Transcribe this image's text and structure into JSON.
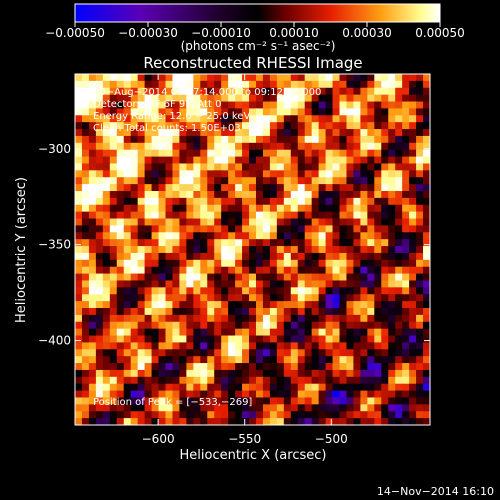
{
  "chart_data": {
    "type": "heatmap",
    "title": "Reconstructed RHESSI Image",
    "xlabel": "Heliocentric X (arcsec)",
    "ylabel": "Heliocentric Y (arcsec)",
    "xlim": [
      -648,
      -443
    ],
    "ylim": [
      -444,
      -261
    ],
    "x_ticks": [
      -600,
      -550,
      -500
    ],
    "x_tick_labels": [
      "−600",
      "−550",
      "−500"
    ],
    "y_ticks": [
      -300,
      -350,
      -400
    ],
    "y_tick_labels": [
      "−300",
      "−350",
      "−400"
    ],
    "colorbar": {
      "range": [
        -0.0005,
        0.0005
      ],
      "ticks": [
        -0.0005,
        -0.0003,
        -0.0001,
        0.0001,
        0.0003,
        0.0005
      ],
      "tick_labels": [
        "−0.00050",
        "−0.00030",
        "−0.00010",
        "0.00010",
        "0.00030",
        "0.00050"
      ],
      "units_label": "(photons cm⁻² s⁻¹ asec⁻²)"
    },
    "colormap_stops": [
      "#0000ff",
      "#5a00b4",
      "#1e0028",
      "#000000",
      "#6e0000",
      "#e61e00",
      "#ffa014",
      "#ffff96",
      "#ffffff"
    ],
    "annotations": [
      "30−Aug−2014 09:07:14.000 to 09:12:44.000",
      "Detectors: 3F 6F 9F, Att 0",
      "Energy Range: 12.0 − 25.0 keV",
      "Clean     Total counts: 1.50E+03"
    ],
    "peak_label": "Position of Peak = [−533,−269]",
    "peak_position": [
      -533,
      -269
    ],
    "grid": false
  },
  "footer": {
    "date": "14−Nov−2014 16:10"
  }
}
